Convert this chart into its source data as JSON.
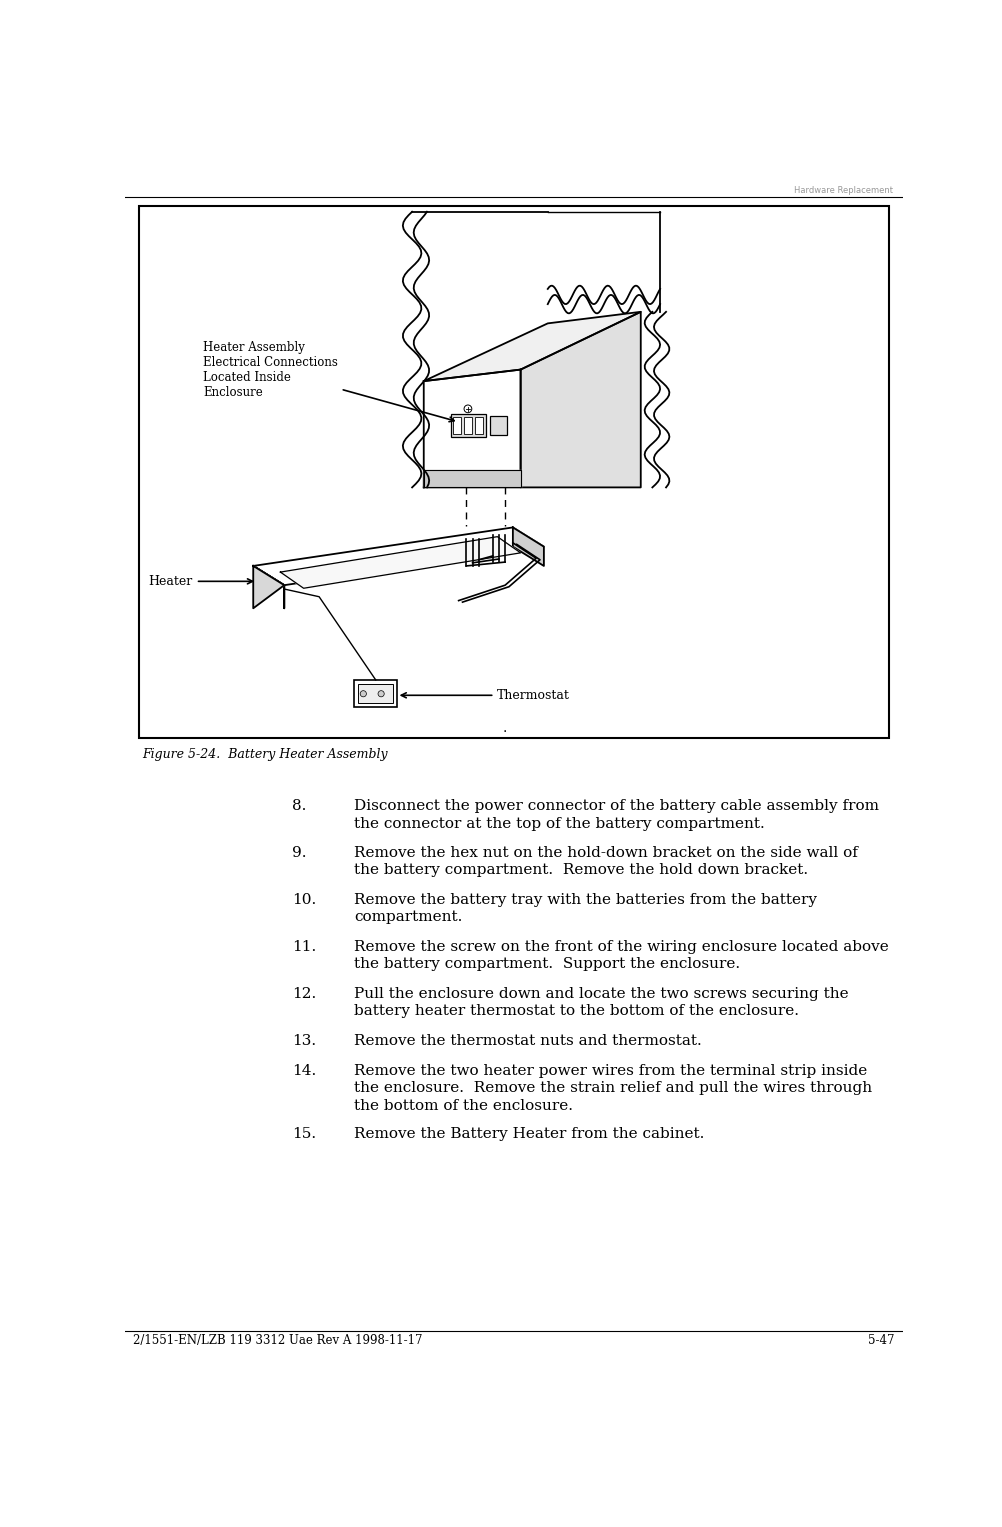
{
  "page_title_top": "Hardware Replacement",
  "figure_label": "Figure 5-24.  Battery Heater Assembly",
  "footer_left": "2/1551-EN/LZB 119 3312 Uae Rev A 1998-11-17",
  "footer_right": "5-47",
  "diagram_labels": {
    "heater_assembly": "Heater Assembly\nElectrical Connections\nLocated Inside\nEnclosure",
    "thermostat": "Thermostat",
    "heater": "Heater"
  },
  "steps": [
    {
      "num": "8.",
      "text": "Disconnect the power connector of the battery cable assembly from\nthe connector at the top of the battery compartment."
    },
    {
      "num": "9.",
      "text": "Remove the hex nut on the hold-down bracket on the side wall of\nthe battery compartment.  Remove the hold down bracket."
    },
    {
      "num": "10.",
      "text": "Remove the battery tray with the batteries from the battery\ncompartment."
    },
    {
      "num": "11.",
      "text": "Remove the screw on the front of the wiring enclosure located above\nthe battery compartment.  Support the enclosure."
    },
    {
      "num": "12.",
      "text": "Pull the enclosure down and locate the two screws securing the\nbattery heater thermostat to the bottom of the enclosure."
    },
    {
      "num": "13.",
      "text": "Remove the thermostat nuts and thermostat."
    },
    {
      "num": "14.",
      "text": "Remove the two heater power wires from the terminal strip inside\nthe enclosure.  Remove the strain relief and pull the wires through\nthe bottom of the enclosure."
    },
    {
      "num": "15.",
      "text": "Remove the Battery Heater from the cabinet."
    }
  ],
  "bg_color": "#ffffff",
  "text_color": "#000000",
  "line_color": "#000000"
}
